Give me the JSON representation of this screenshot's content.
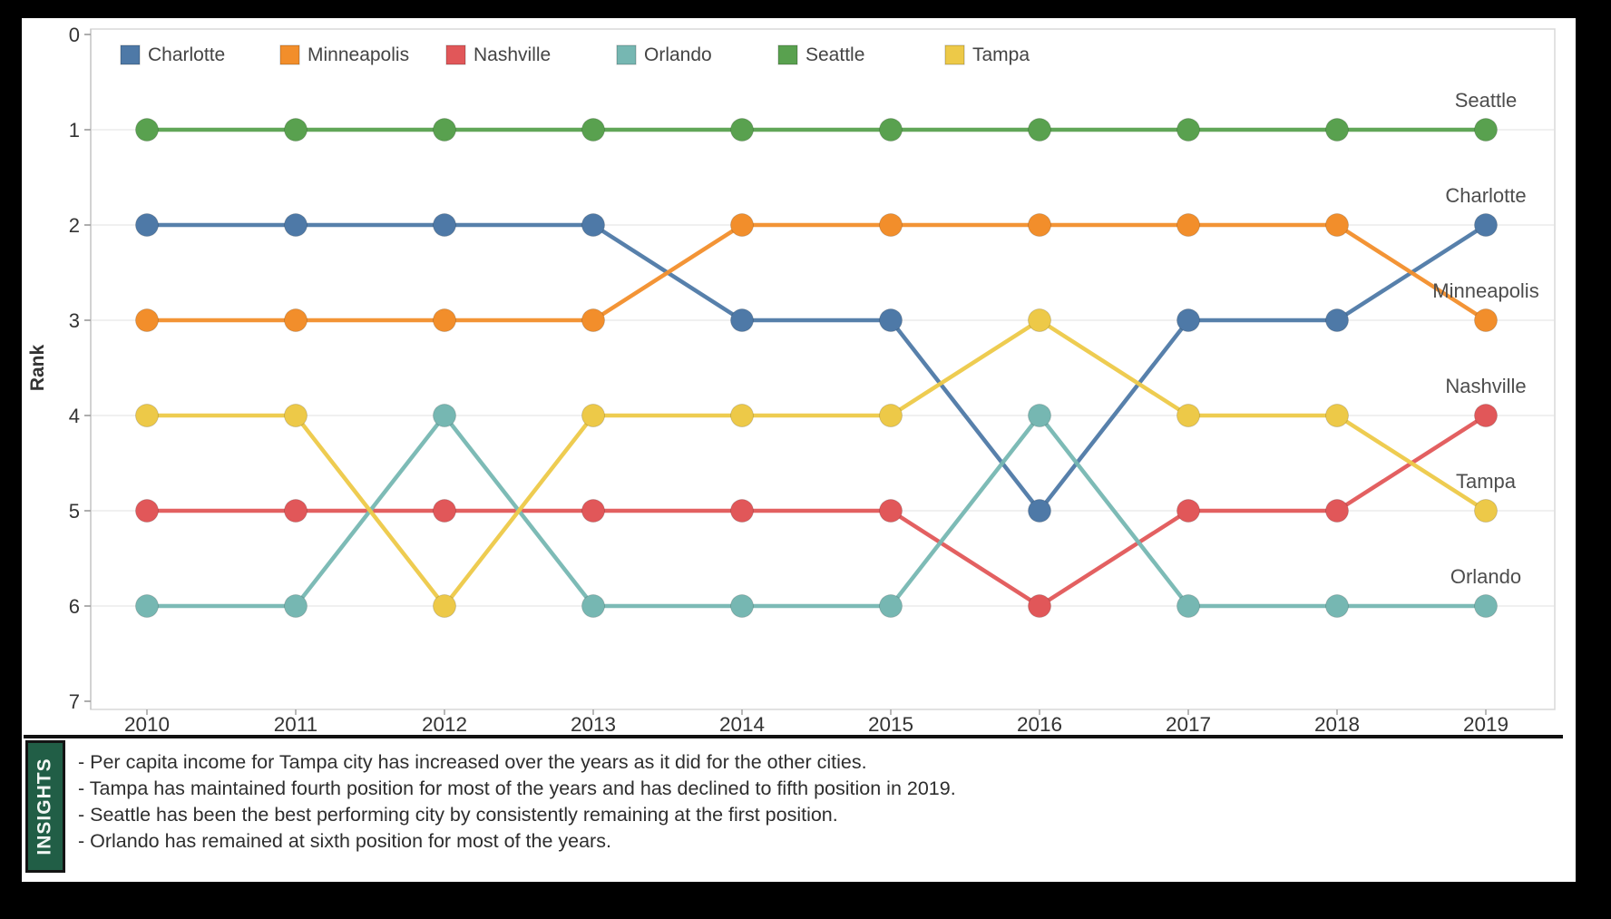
{
  "colors": {
    "canvas_bg": "#000000",
    "panel_bg": "#ffffff",
    "grid": "#ececec",
    "plot_border": "#d8d8d8",
    "axis_line": "#c9c9c9",
    "tick_mark": "#9a9a9a",
    "axis_text": "#333333",
    "legend_text": "#444444",
    "end_label_text": "#4d4d4d",
    "insights_label_bg": "#215e46",
    "insights_border": "#141414",
    "insights_text": "#2e2e2e"
  },
  "chart_data": {
    "type": "line",
    "subtype": "bump-rank-chart",
    "title": "",
    "xlabel": "",
    "ylabel": "Rank",
    "x": [
      2010,
      2011,
      2012,
      2013,
      2014,
      2015,
      2016,
      2017,
      2018,
      2019
    ],
    "yticks": [
      0,
      1,
      2,
      3,
      4,
      5,
      6,
      7
    ],
    "ylim": [
      0,
      7
    ],
    "y_axis_inverted": true,
    "grid": "horizontal",
    "legend_position": "top",
    "end_labels_at_line_end": true,
    "series": [
      {
        "name": "Charlotte",
        "color": "#4e79a7",
        "values": [
          2,
          2,
          2,
          2,
          3,
          3,
          5,
          3,
          3,
          2
        ]
      },
      {
        "name": "Minneapolis",
        "color": "#f28e2b",
        "values": [
          3,
          3,
          3,
          3,
          2,
          2,
          2,
          2,
          2,
          3
        ]
      },
      {
        "name": "Nashville",
        "color": "#e15759",
        "values": [
          5,
          5,
          5,
          5,
          5,
          5,
          6,
          5,
          5,
          4
        ]
      },
      {
        "name": "Orlando",
        "color": "#76b7b2",
        "values": [
          6,
          6,
          4,
          6,
          6,
          6,
          4,
          6,
          6,
          6
        ]
      },
      {
        "name": "Seattle",
        "color": "#59a14f",
        "values": [
          1,
          1,
          1,
          1,
          1,
          1,
          1,
          1,
          1,
          1
        ]
      },
      {
        "name": "Tampa",
        "color": "#edc948",
        "values": [
          4,
          4,
          6,
          4,
          4,
          4,
          3,
          4,
          4,
          5
        ]
      }
    ]
  },
  "insights": {
    "label": "INSIGHTS",
    "items": [
      "- Per capita income for Tampa city has increased over the years as it did for the other cities.",
      "- Tampa has maintained fourth position for most of the years and has declined to fifth position in 2019.",
      "- Seattle has been the best performing city by consistently remaining at the first position.",
      "- Orlando has remained at sixth position for most of the years."
    ]
  }
}
